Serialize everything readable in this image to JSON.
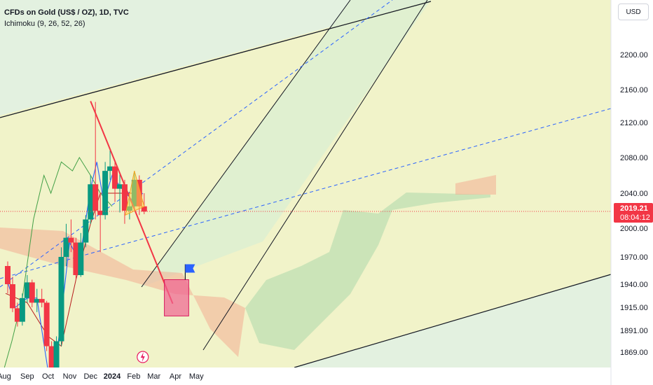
{
  "legend": {
    "title": "CFDs on Gold (US$ / OZ), 1D, TVC",
    "indicator": "Ichimoku (9, 26, 52, 26)"
  },
  "currency_button": "USD",
  "event_icon": "flash-icon",
  "colors": {
    "background": "#f1f3c9",
    "up": "#089981",
    "down": "#f23645",
    "conversion_line": "#2962ff",
    "base_line": "#b71c1c",
    "lagging_span": "#43a047",
    "cloud_bull": "#a5d6a7",
    "cloud_bear": "#f4a88e",
    "downtrend_line": "#f23645",
    "triangle": "#ffd54f",
    "target_box": "#f06292",
    "flag": "#2962ff",
    "price_tag": "#f23645"
  },
  "chart_data": {
    "type": "candlestick",
    "ticker": "CFDs on Gold (US$ / OZ)",
    "interval": "1D",
    "source": "TVC",
    "indicator": "Ichimoku (9, 26, 52, 26)",
    "last_price": "2019.21",
    "countdown": "08:04:12",
    "y_ticks": [
      "2200.00",
      "2160.00",
      "2120.00",
      "2080.00",
      "2040.00",
      "2000.00",
      "1970.00",
      "1940.00",
      "1915.00",
      "1891.00",
      "1869.00"
    ],
    "y_tick_values": [
      2200,
      2160,
      2120,
      2080,
      2040,
      2000,
      1970,
      1940,
      1915,
      1891,
      1869
    ],
    "x_ticks": [
      "Aug",
      "Sep",
      "Oct",
      "Nov",
      "Dec",
      "2024",
      "Feb",
      "Mar",
      "Apr",
      "May"
    ],
    "x_tick_dates": [
      "2023-08-01",
      "2023-09-01",
      "2023-10-01",
      "2023-11-01",
      "2023-12-01",
      "2024-01-01",
      "2024-02-01",
      "2024-03-01",
      "2024-04-01",
      "2024-05-01"
    ],
    "candles_weekly_ohlc": [
      [
        "2023-08-01",
        1960,
        1965,
        1930,
        1940
      ],
      [
        "2023-08-08",
        1940,
        1948,
        1910,
        1914
      ],
      [
        "2023-08-15",
        1914,
        1920,
        1895,
        1900
      ],
      [
        "2023-08-22",
        1900,
        1930,
        1896,
        1925
      ],
      [
        "2023-08-29",
        1925,
        1950,
        1920,
        1942
      ],
      [
        "2023-09-05",
        1942,
        1945,
        1915,
        1920
      ],
      [
        "2023-09-12",
        1920,
        1935,
        1910,
        1924
      ],
      [
        "2023-09-19",
        1924,
        1935,
        1915,
        1920
      ],
      [
        "2023-09-26",
        1920,
        1922,
        1870,
        1875
      ],
      [
        "2023-10-03",
        1875,
        1880,
        1810,
        1830
      ],
      [
        "2023-10-10",
        1830,
        1885,
        1828,
        1880
      ],
      [
        "2023-10-17",
        1880,
        1980,
        1875,
        1970
      ],
      [
        "2023-10-24",
        1970,
        2005,
        1960,
        1990
      ],
      [
        "2023-10-31",
        1990,
        2010,
        1975,
        1985
      ],
      [
        "2023-11-07",
        1985,
        1990,
        1945,
        1950
      ],
      [
        "2023-11-14",
        1950,
        1995,
        1948,
        1985
      ],
      [
        "2023-11-21",
        1985,
        2015,
        1980,
        2010
      ],
      [
        "2023-11-28",
        2010,
        2060,
        2005,
        2050
      ],
      [
        "2023-12-05",
        2050,
        2145,
        2010,
        2020
      ],
      [
        "2023-12-12",
        2020,
        2040,
        1975,
        2015
      ],
      [
        "2023-12-19",
        2015,
        2075,
        2010,
        2065
      ],
      [
        "2023-12-26",
        2065,
        2088,
        2055,
        2070
      ],
      [
        "2024-01-02",
        2070,
        2075,
        2030,
        2045
      ],
      [
        "2024-01-09",
        2045,
        2062,
        2018,
        2050
      ],
      [
        "2024-01-16",
        2050,
        2055,
        2005,
        2020
      ],
      [
        "2024-01-23",
        2020,
        2035,
        2010,
        2025
      ],
      [
        "2024-01-30",
        2025,
        2065,
        2020,
        2055
      ],
      [
        "2024-02-06",
        2055,
        2060,
        2015,
        2025
      ],
      [
        "2024-02-13",
        2025,
        2040,
        2016,
        2019
      ]
    ],
    "ichimoku": {
      "conversion": [
        [
          "2023-08-01",
          1950
        ],
        [
          "2023-08-15",
          1915
        ],
        [
          "2023-09-01",
          1925
        ],
        [
          "2023-09-15",
          1925
        ],
        [
          "2023-10-01",
          1850
        ],
        [
          "2023-10-15",
          1875
        ],
        [
          "2023-11-01",
          1985
        ],
        [
          "2023-11-15",
          1965
        ],
        [
          "2023-12-01",
          2045
        ],
        [
          "2023-12-10",
          2075
        ],
        [
          "2023-12-20",
          2030
        ],
        [
          "2024-01-01",
          2060
        ],
        [
          "2024-01-15",
          2045
        ],
        [
          "2024-02-01",
          2030
        ],
        [
          "2024-02-14",
          2040
        ]
      ],
      "base": [
        [
          "2023-08-01",
          1930
        ],
        [
          "2023-09-01",
          1920
        ],
        [
          "2023-10-01",
          1885
        ],
        [
          "2023-10-20",
          1875
        ],
        [
          "2023-11-10",
          1945
        ],
        [
          "2023-12-01",
          2005
        ],
        [
          "2023-12-15",
          2040
        ],
        [
          "2024-01-05",
          2040
        ],
        [
          "2024-02-01",
          2040
        ],
        [
          "2024-02-14",
          2030
        ]
      ],
      "lagging_span": [
        [
          "2023-07-25",
          1840
        ],
        [
          "2023-08-10",
          1880
        ],
        [
          "2023-08-25",
          1925
        ],
        [
          "2023-09-10",
          2010
        ],
        [
          "2023-09-25",
          2060
        ],
        [
          "2023-10-05",
          2040
        ],
        [
          "2023-10-20",
          2075
        ],
        [
          "2023-11-05",
          2065
        ],
        [
          "2023-11-15",
          2080
        ],
        [
          "2023-12-01",
          2060
        ],
        [
          "2023-12-15",
          2040
        ],
        [
          "2024-01-01",
          2025
        ]
      ],
      "cloud_to": "2024-03-20"
    },
    "drawings": {
      "downtrend_line": {
        "from": [
          "2023-12-01",
          2146
        ],
        "to": [
          "2024-03-28",
          1919
        ]
      },
      "triangle": [
        [
          "2024-01-20",
          2015
        ],
        [
          "2024-02-02",
          2065
        ],
        [
          "2024-02-16",
          2025
        ]
      ],
      "target_box": {
        "from_date": "2024-03-16",
        "to_date": "2024-04-20",
        "top": 1945,
        "bottom": 1906
      },
      "flag_date": "2024-04-15"
    }
  }
}
